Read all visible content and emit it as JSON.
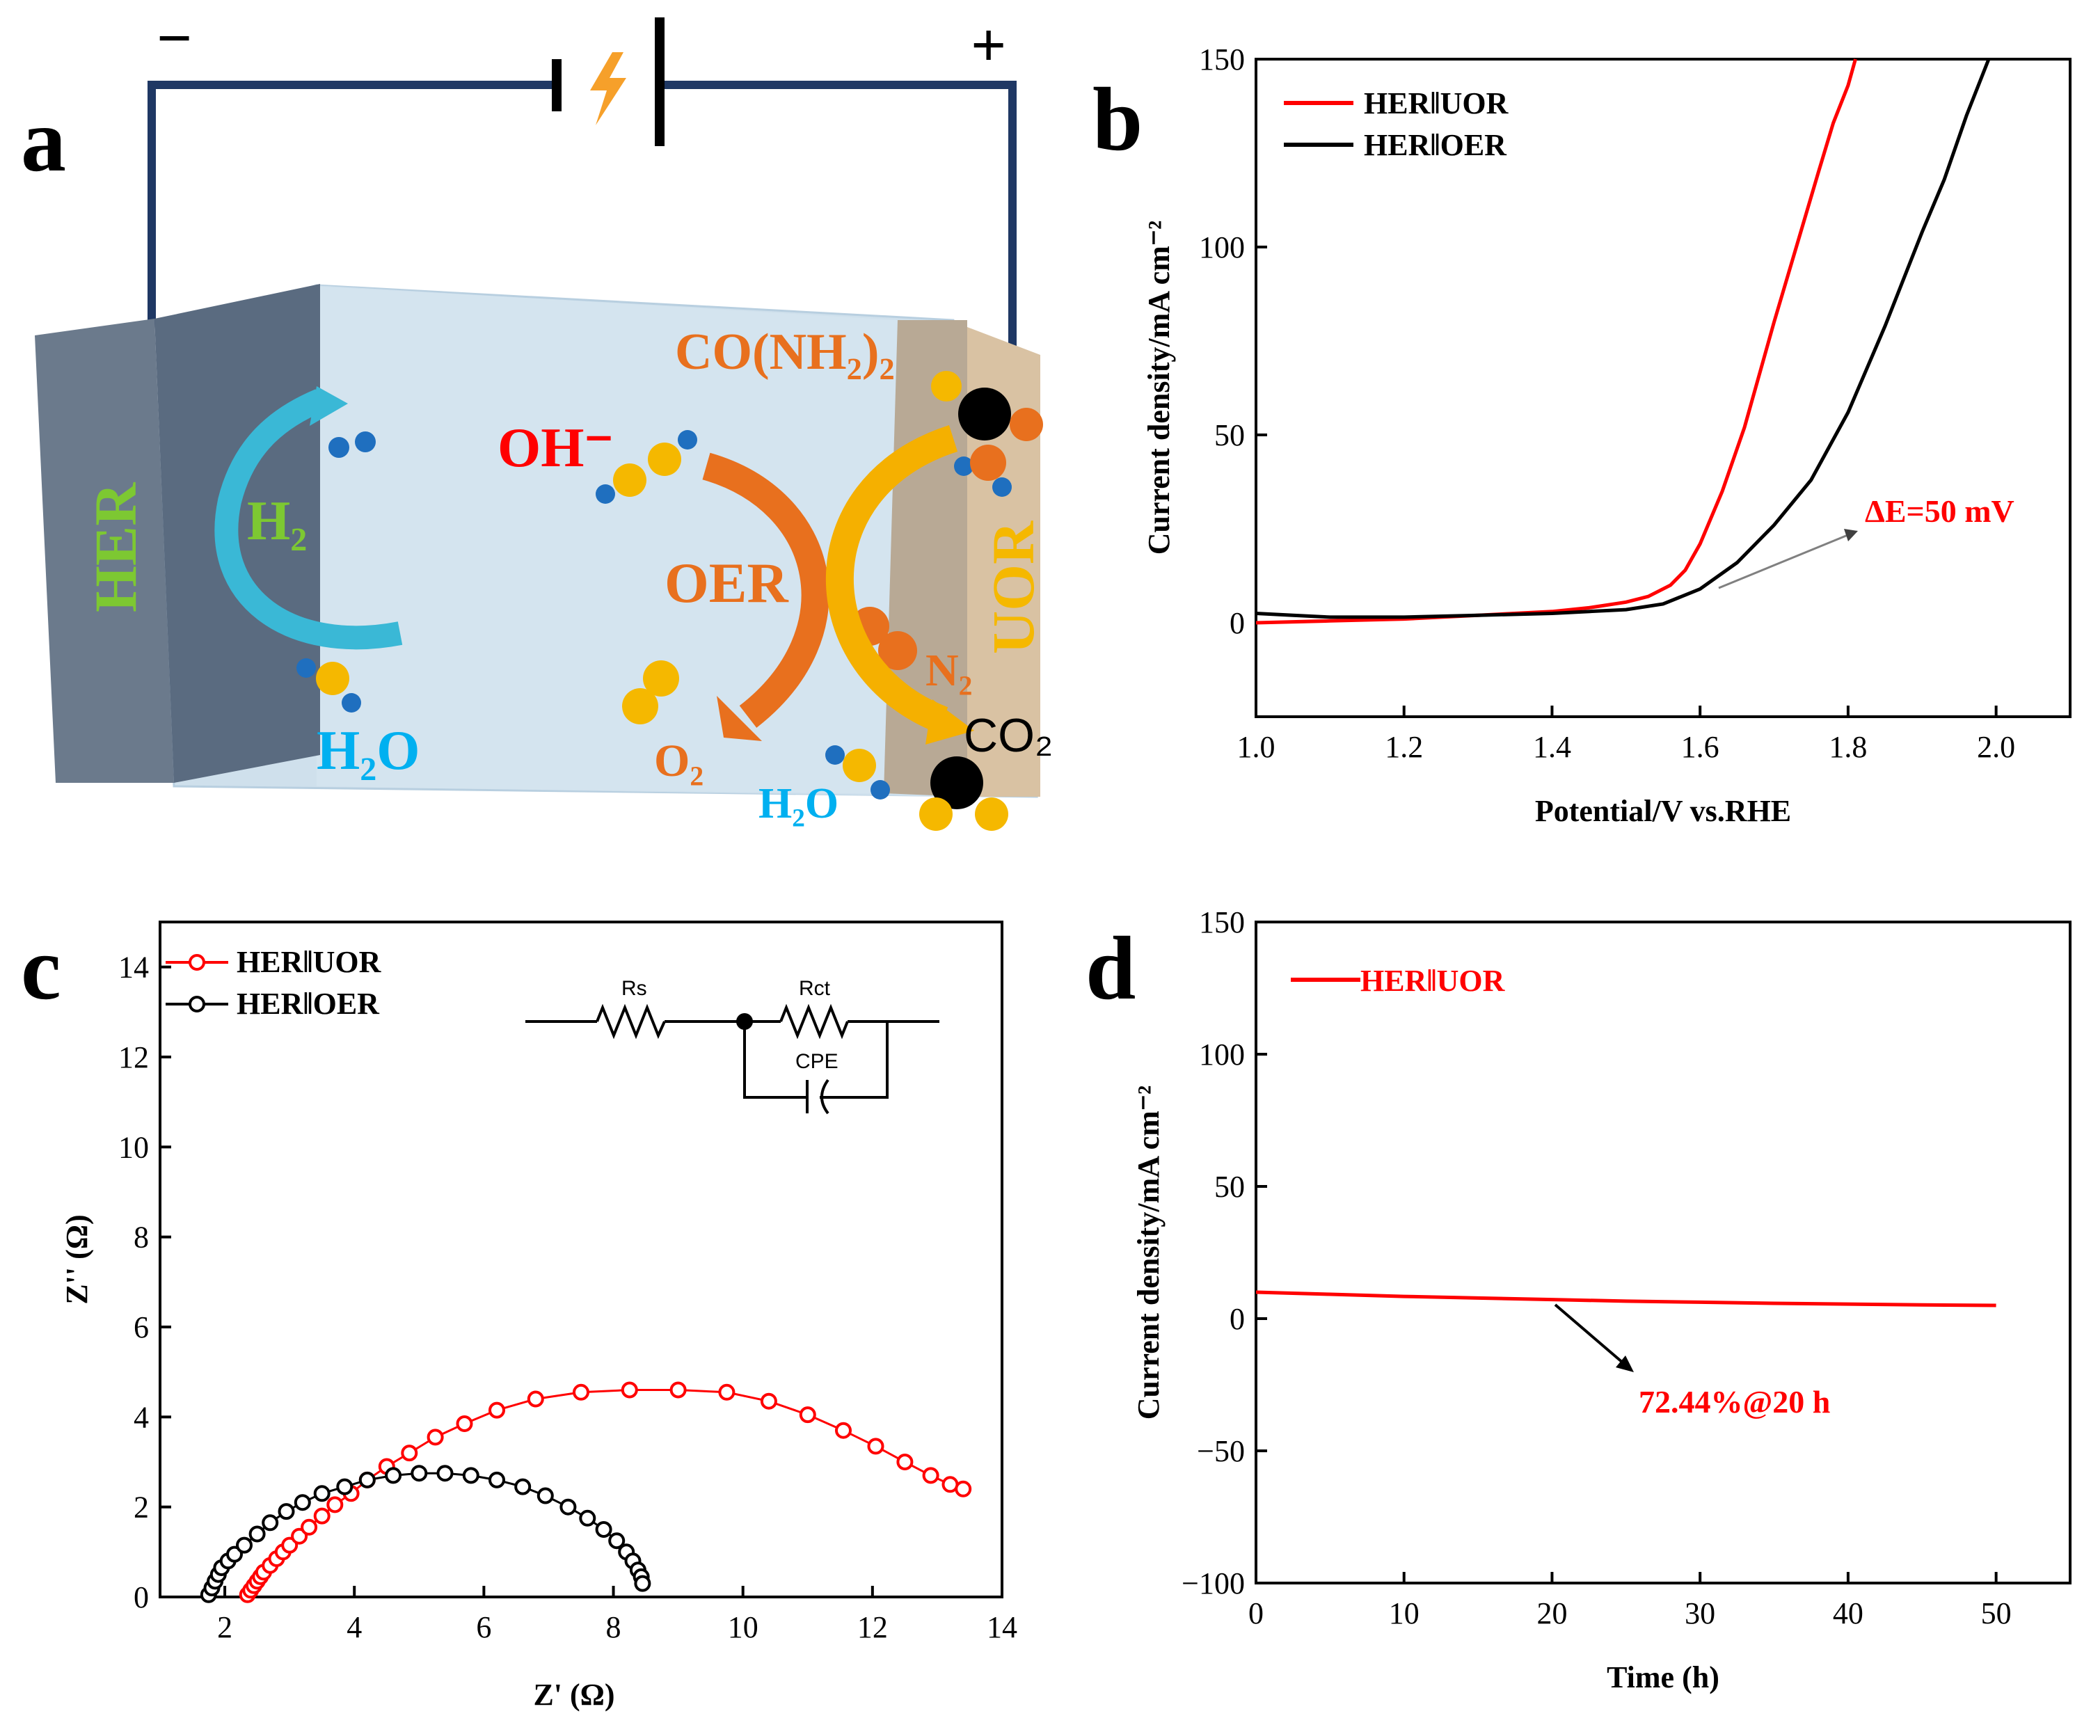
{
  "panels": {
    "a": "a",
    "b": "b",
    "c": "c",
    "d": "d"
  },
  "schematic": {
    "minus": "−",
    "plus": "+",
    "her": "HER",
    "uor": "UOR",
    "h2": "H₂",
    "h2o_left": "H₂O",
    "oh": "OH⁻",
    "urea": "CO(NH₂)₂",
    "oer": "OER",
    "n2": "N₂",
    "o2": "O₂",
    "co2": "CO₂",
    "h2o_right": "H₂O",
    "colors": {
      "her_text": "#7dc832",
      "uor_text": "#f5b800",
      "h2o_text": "#00b0f0",
      "oh_text": "#ff0000",
      "orange_text": "#e8701e",
      "wire": "#1f3864",
      "electrolyte": "#cfe0ec"
    }
  },
  "chart_data": [
    {
      "panel": "b",
      "type": "line",
      "xlabel": "Potential/V vs.RHE",
      "ylabel": "Current density/mA cm⁻²",
      "xlim": [
        1.0,
        2.1
      ],
      "ylim": [
        -25,
        150
      ],
      "xticks": [
        "1.0",
        "1.2",
        "1.4",
        "1.6",
        "1.8",
        "2.0"
      ],
      "yticks": [
        "0",
        "50",
        "100",
        "150"
      ],
      "annotation": "ΔE=50 mV",
      "series": [
        {
          "name": "HER‖UOR",
          "color": "#ff0000",
          "x": [
            1.0,
            1.1,
            1.2,
            1.3,
            1.4,
            1.45,
            1.5,
            1.53,
            1.56,
            1.58,
            1.6,
            1.63,
            1.66,
            1.7,
            1.73,
            1.76,
            1.78,
            1.8,
            1.81
          ],
          "y": [
            0,
            0.5,
            1,
            2,
            3,
            4,
            5.5,
            7,
            10,
            14,
            21,
            35,
            52,
            80,
            100,
            120,
            133,
            143,
            150
          ]
        },
        {
          "name": "HER‖OER",
          "color": "#000000",
          "x": [
            1.0,
            1.05,
            1.1,
            1.2,
            1.3,
            1.4,
            1.5,
            1.55,
            1.6,
            1.65,
            1.7,
            1.75,
            1.8,
            1.85,
            1.9,
            1.93,
            1.96,
            1.99
          ],
          "y": [
            2.5,
            2,
            1.5,
            1.5,
            2,
            2.5,
            3.5,
            5,
            9,
            16,
            26,
            38,
            56,
            79,
            104,
            118,
            135,
            150
          ]
        }
      ]
    },
    {
      "panel": "c",
      "type": "scatter",
      "xlabel": "Z' (Ω)",
      "ylabel": "Z'' (Ω)",
      "xlim": [
        1,
        14
      ],
      "ylim": [
        0,
        15
      ],
      "xticks": [
        "2",
        "4",
        "6",
        "8",
        "10",
        "12",
        "14"
      ],
      "yticks": [
        "0",
        "2",
        "4",
        "6",
        "8",
        "10",
        "12",
        "14"
      ],
      "circuit": {
        "rs": "Rs",
        "rct": "Rct",
        "cpe": "CPE"
      },
      "series": [
        {
          "name": "HER‖UOR",
          "color": "#ff0000",
          "x": [
            2.35,
            2.4,
            2.45,
            2.5,
            2.55,
            2.6,
            2.7,
            2.8,
            2.9,
            3.0,
            3.15,
            3.3,
            3.5,
            3.7,
            3.95,
            4.2,
            4.5,
            4.85,
            5.25,
            5.7,
            6.2,
            6.8,
            7.5,
            8.25,
            9.0,
            9.75,
            10.4,
            11.0,
            11.55,
            12.05,
            12.5,
            12.9,
            13.2,
            13.4
          ],
          "y": [
            0.05,
            0.15,
            0.25,
            0.35,
            0.45,
            0.55,
            0.7,
            0.85,
            1.0,
            1.15,
            1.35,
            1.55,
            1.8,
            2.05,
            2.3,
            2.6,
            2.9,
            3.2,
            3.55,
            3.85,
            4.15,
            4.4,
            4.55,
            4.6,
            4.6,
            4.55,
            4.35,
            4.05,
            3.7,
            3.35,
            3.0,
            2.7,
            2.5,
            2.4
          ]
        },
        {
          "name": "HER‖OER",
          "color": "#000000",
          "x": [
            1.75,
            1.8,
            1.85,
            1.9,
            1.95,
            2.05,
            2.15,
            2.3,
            2.5,
            2.7,
            2.95,
            3.2,
            3.5,
            3.85,
            4.2,
            4.6,
            5.0,
            5.4,
            5.8,
            6.2,
            6.6,
            6.95,
            7.3,
            7.6,
            7.85,
            8.05,
            8.2,
            8.3,
            8.38,
            8.43,
            8.45
          ],
          "y": [
            0.05,
            0.2,
            0.35,
            0.5,
            0.65,
            0.8,
            0.95,
            1.15,
            1.4,
            1.65,
            1.9,
            2.1,
            2.3,
            2.45,
            2.6,
            2.7,
            2.75,
            2.75,
            2.7,
            2.6,
            2.45,
            2.25,
            2.0,
            1.75,
            1.5,
            1.25,
            1.0,
            0.8,
            0.6,
            0.45,
            0.3
          ]
        }
      ]
    },
    {
      "panel": "d",
      "type": "line",
      "xlabel": "Time (h)",
      "ylabel": "Current density/mA cm⁻²",
      "xlim": [
        0,
        55
      ],
      "ylim": [
        -100,
        150
      ],
      "xticks": [
        "0",
        "10",
        "20",
        "30",
        "40",
        "50"
      ],
      "yticks": [
        "−100",
        "−50",
        "0",
        "50",
        "100",
        "150"
      ],
      "annotation": "72.44%@20 h",
      "series": [
        {
          "name": "HER‖UOR",
          "color": "#ff0000",
          "x": [
            0,
            5,
            10,
            15,
            20,
            25,
            30,
            35,
            40,
            45,
            50
          ],
          "y": [
            10,
            9.2,
            8.4,
            7.8,
            7.2,
            6.6,
            6.2,
            5.8,
            5.5,
            5.2,
            5.0
          ]
        }
      ]
    }
  ]
}
